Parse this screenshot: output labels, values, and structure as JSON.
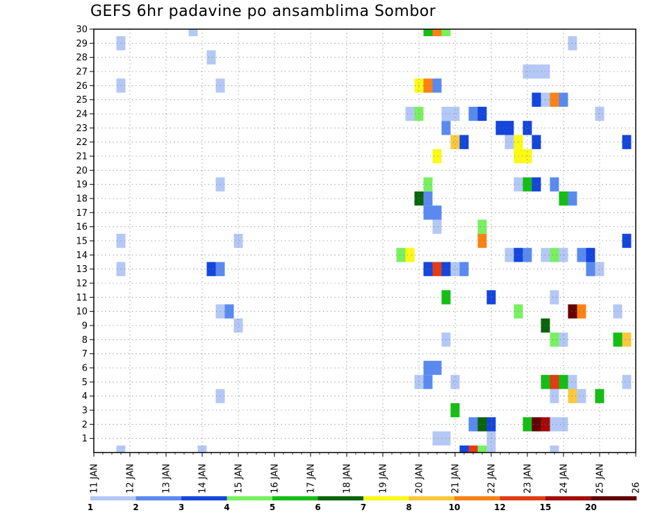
{
  "chart_data": {
    "type": "heatmap",
    "title": "GEFS 6hr padavine po ansamblima Sombor",
    "xlabel": "",
    "ylabel": "",
    "x_tick_labels": [
      "11 JAN",
      "12 JAN",
      "13 JAN",
      "14 JAN",
      "15 JAN",
      "16 JAN",
      "17 JAN",
      "18 JAN",
      "19 JAN",
      "20 JAN",
      "21 JAN",
      "22 JAN",
      "23 JAN",
      "24 JAN",
      "25 JAN",
      "26"
    ],
    "y_tick_labels": [
      "1",
      "2",
      "3",
      "4",
      "5",
      "6",
      "7",
      "8",
      "9",
      "10",
      "11",
      "12",
      "13",
      "14",
      "15",
      "16",
      "17",
      "18",
      "19",
      "20",
      "21",
      "22",
      "23",
      "24",
      "25",
      "26",
      "27",
      "28",
      "29",
      "30"
    ],
    "xlim": [
      "11 JAN 00Z",
      "26 JAN 00Z"
    ],
    "ylim": [
      0,
      30
    ],
    "grid": true,
    "time_step_hours": 6,
    "colorbar": {
      "labels": [
        "1",
        "2",
        "3",
        "4",
        "5",
        "6",
        "7",
        "8",
        "10",
        "12",
        "15",
        "20"
      ],
      "colors": [
        "#b4c8f5",
        "#5a8af0",
        "#1446dc",
        "#78f060",
        "#14be14",
        "#0a640a",
        "#fafa14",
        "#fac83c",
        "#fa8214",
        "#e13c14",
        "#a50a0a",
        "#640000"
      ]
    },
    "cells": [
      {
        "x": "11 JAN 18Z",
        "member": 0,
        "level": 1
      },
      {
        "x": "11 JAN 18Z",
        "member": 13,
        "level": 1
      },
      {
        "x": "11 JAN 18Z",
        "member": 15,
        "level": 1
      },
      {
        "x": "11 JAN 18Z",
        "member": 26,
        "level": 1
      },
      {
        "x": "11 JAN 18Z",
        "member": 29,
        "level": 1
      },
      {
        "x": "13 JAN 18Z",
        "member": 30,
        "level": 1
      },
      {
        "x": "14 JAN 00Z",
        "member": 0,
        "level": 1
      },
      {
        "x": "14 JAN 06Z",
        "member": 13,
        "level": 3
      },
      {
        "x": "14 JAN 06Z",
        "member": 28,
        "level": 1
      },
      {
        "x": "14 JAN 12Z",
        "member": 4,
        "level": 1
      },
      {
        "x": "14 JAN 12Z",
        "member": 10,
        "level": 1
      },
      {
        "x": "14 JAN 12Z",
        "member": 13,
        "level": 2
      },
      {
        "x": "14 JAN 12Z",
        "member": 19,
        "level": 1
      },
      {
        "x": "14 JAN 12Z",
        "member": 26,
        "level": 1
      },
      {
        "x": "14 JAN 18Z",
        "member": 10,
        "level": 2
      },
      {
        "x": "15 JAN 00Z",
        "member": 9,
        "level": 1
      },
      {
        "x": "15 JAN 00Z",
        "member": 15,
        "level": 1
      },
      {
        "x": "19 JAN 12Z",
        "member": 14,
        "level": 4
      },
      {
        "x": "19 JAN 18Z",
        "member": 14,
        "level": 7
      },
      {
        "x": "19 JAN 18Z",
        "member": 24,
        "level": 1
      },
      {
        "x": "20 JAN 00Z",
        "member": 5,
        "level": 1
      },
      {
        "x": "20 JAN 00Z",
        "member": 18,
        "level": 6
      },
      {
        "x": "20 JAN 00Z",
        "member": 24,
        "level": 4
      },
      {
        "x": "20 JAN 00Z",
        "member": 26,
        "level": 7
      },
      {
        "x": "20 JAN 06Z",
        "member": 5,
        "level": 2
      },
      {
        "x": "20 JAN 06Z",
        "member": 6,
        "level": 2
      },
      {
        "x": "20 JAN 06Z",
        "member": 13,
        "level": 3
      },
      {
        "x": "20 JAN 06Z",
        "member": 17,
        "level": 2
      },
      {
        "x": "20 JAN 06Z",
        "member": 18,
        "level": 2
      },
      {
        "x": "20 JAN 06Z",
        "member": 19,
        "level": 4
      },
      {
        "x": "20 JAN 06Z",
        "member": 26,
        "level": 9
      },
      {
        "x": "20 JAN 06Z",
        "member": 30,
        "level": 5
      },
      {
        "x": "20 JAN 12Z",
        "member": 1,
        "level": 1
      },
      {
        "x": "20 JAN 12Z",
        "member": 6,
        "level": 2
      },
      {
        "x": "20 JAN 12Z",
        "member": 13,
        "level": 10
      },
      {
        "x": "20 JAN 12Z",
        "member": 16,
        "level": 1
      },
      {
        "x": "20 JAN 12Z",
        "member": 17,
        "level": 2
      },
      {
        "x": "20 JAN 12Z",
        "member": 21,
        "level": 7
      },
      {
        "x": "20 JAN 12Z",
        "member": 26,
        "level": 2
      },
      {
        "x": "20 JAN 12Z",
        "member": 30,
        "level": 9
      },
      {
        "x": "20 JAN 18Z",
        "member": 1,
        "level": 1
      },
      {
        "x": "20 JAN 18Z",
        "member": 8,
        "level": 1
      },
      {
        "x": "20 JAN 18Z",
        "member": 11,
        "level": 5
      },
      {
        "x": "20 JAN 18Z",
        "member": 13,
        "level": 3
      },
      {
        "x": "20 JAN 18Z",
        "member": 23,
        "level": 2
      },
      {
        "x": "20 JAN 18Z",
        "member": 24,
        "level": 1
      },
      {
        "x": "20 JAN 18Z",
        "member": 30,
        "level": 4
      },
      {
        "x": "21 JAN 00Z",
        "member": 3,
        "level": 5
      },
      {
        "x": "21 JAN 00Z",
        "member": 5,
        "level": 1
      },
      {
        "x": "21 JAN 00Z",
        "member": 13,
        "level": 1
      },
      {
        "x": "21 JAN 00Z",
        "member": 22,
        "level": 8
      },
      {
        "x": "21 JAN 00Z",
        "member": 24,
        "level": 1
      },
      {
        "x": "21 JAN 06Z",
        "member": 0,
        "level": 3
      },
      {
        "x": "21 JAN 06Z",
        "member": 13,
        "level": 2
      },
      {
        "x": "21 JAN 06Z",
        "member": 22,
        "level": 3
      },
      {
        "x": "21 JAN 12Z",
        "member": 0,
        "level": 10
      },
      {
        "x": "21 JAN 12Z",
        "member": 2,
        "level": 2
      },
      {
        "x": "21 JAN 12Z",
        "member": 24,
        "level": 2
      },
      {
        "x": "21 JAN 18Z",
        "member": 0,
        "level": 4
      },
      {
        "x": "21 JAN 18Z",
        "member": 2,
        "level": 6
      },
      {
        "x": "21 JAN 18Z",
        "member": 16,
        "level": 4
      },
      {
        "x": "21 JAN 18Z",
        "member": 15,
        "level": 9
      },
      {
        "x": "21 JAN 18Z",
        "member": 24,
        "level": 3
      },
      {
        "x": "22 JAN 00Z",
        "member": 0,
        "level": 1
      },
      {
        "x": "22 JAN 00Z",
        "member": 1,
        "level": 1
      },
      {
        "x": "22 JAN 00Z",
        "member": 2,
        "level": 3
      },
      {
        "x": "22 JAN 00Z",
        "member": 11,
        "level": 3
      },
      {
        "x": "22 JAN 06Z",
        "member": 23,
        "level": 3
      },
      {
        "x": "22 JAN 12Z",
        "member": 14,
        "level": 1
      },
      {
        "x": "22 JAN 12Z",
        "member": 22,
        "level": 1
      },
      {
        "x": "22 JAN 12Z",
        "member": 23,
        "level": 3
      },
      {
        "x": "22 JAN 18Z",
        "member": 10,
        "level": 4
      },
      {
        "x": "22 JAN 18Z",
        "member": 14,
        "level": 3
      },
      {
        "x": "22 JAN 18Z",
        "member": 19,
        "level": 1
      },
      {
        "x": "22 JAN 18Z",
        "member": 21,
        "level": 7
      },
      {
        "x": "22 JAN 18Z",
        "member": 22,
        "level": 7
      },
      {
        "x": "23 JAN 00Z",
        "member": 2,
        "level": 5
      },
      {
        "x": "23 JAN 00Z",
        "member": 14,
        "level": 2
      },
      {
        "x": "23 JAN 00Z",
        "member": 19,
        "level": 5
      },
      {
        "x": "23 JAN 00Z",
        "member": 21,
        "level": 7
      },
      {
        "x": "23 JAN 00Z",
        "member": 23,
        "level": 3
      },
      {
        "x": "23 JAN 00Z",
        "member": 27,
        "level": 1
      },
      {
        "x": "23 JAN 06Z",
        "member": 2,
        "level": 12
      },
      {
        "x": "23 JAN 06Z",
        "member": 19,
        "level": 3
      },
      {
        "x": "23 JAN 06Z",
        "member": 22,
        "level": 3
      },
      {
        "x": "23 JAN 06Z",
        "member": 25,
        "level": 3
      },
      {
        "x": "23 JAN 06Z",
        "member": 27,
        "level": 1
      },
      {
        "x": "23 JAN 12Z",
        "member": 2,
        "level": 11
      },
      {
        "x": "23 JAN 12Z",
        "member": 5,
        "level": 5
      },
      {
        "x": "23 JAN 12Z",
        "member": 9,
        "level": 6
      },
      {
        "x": "23 JAN 12Z",
        "member": 14,
        "level": 1
      },
      {
        "x": "23 JAN 12Z",
        "member": 25,
        "level": 1
      },
      {
        "x": "23 JAN 12Z",
        "member": 27,
        "level": 1
      },
      {
        "x": "23 JAN 18Z",
        "member": 0,
        "level": 1
      },
      {
        "x": "23 JAN 18Z",
        "member": 2,
        "level": 1
      },
      {
        "x": "23 JAN 18Z",
        "member": 4,
        "level": 1
      },
      {
        "x": "23 JAN 18Z",
        "member": 5,
        "level": 10
      },
      {
        "x": "23 JAN 18Z",
        "member": 8,
        "level": 4
      },
      {
        "x": "23 JAN 18Z",
        "member": 11,
        "level": 1
      },
      {
        "x": "23 JAN 18Z",
        "member": 14,
        "level": 4
      },
      {
        "x": "23 JAN 18Z",
        "member": 19,
        "level": 2
      },
      {
        "x": "23 JAN 18Z",
        "member": 25,
        "level": 9
      },
      {
        "x": "24 JAN 00Z",
        "member": 2,
        "level": 1
      },
      {
        "x": "24 JAN 00Z",
        "member": 5,
        "level": 5
      },
      {
        "x": "24 JAN 00Z",
        "member": 8,
        "level": 1
      },
      {
        "x": "24 JAN 00Z",
        "member": 14,
        "level": 1
      },
      {
        "x": "24 JAN 00Z",
        "member": 18,
        "level": 5
      },
      {
        "x": "24 JAN 00Z",
        "member": 25,
        "level": 2
      },
      {
        "x": "24 JAN 06Z",
        "member": 4,
        "level": 8
      },
      {
        "x": "24 JAN 06Z",
        "member": 5,
        "level": 1
      },
      {
        "x": "24 JAN 06Z",
        "member": 10,
        "level": 12
      },
      {
        "x": "24 JAN 06Z",
        "member": 18,
        "level": 2
      },
      {
        "x": "24 JAN 06Z",
        "member": 29,
        "level": 1
      },
      {
        "x": "24 JAN 12Z",
        "member": 4,
        "level": 1
      },
      {
        "x": "24 JAN 12Z",
        "member": 10,
        "level": 9
      },
      {
        "x": "24 JAN 12Z",
        "member": 14,
        "level": 2
      },
      {
        "x": "24 JAN 18Z",
        "member": 13,
        "level": 2
      },
      {
        "x": "24 JAN 18Z",
        "member": 14,
        "level": 3
      },
      {
        "x": "25 JAN 00Z",
        "member": 4,
        "level": 5
      },
      {
        "x": "25 JAN 00Z",
        "member": 13,
        "level": 1
      },
      {
        "x": "25 JAN 00Z",
        "member": 24,
        "level": 1
      },
      {
        "x": "25 JAN 12Z",
        "member": 10,
        "level": 1
      },
      {
        "x": "25 JAN 12Z",
        "member": 8,
        "level": 5
      },
      {
        "x": "25 JAN 18Z",
        "member": 5,
        "level": 1
      },
      {
        "x": "25 JAN 18Z",
        "member": 8,
        "level": 8
      },
      {
        "x": "25 JAN 18Z",
        "member": 15,
        "level": 3
      },
      {
        "x": "25 JAN 18Z",
        "member": 22,
        "level": 3
      }
    ]
  }
}
